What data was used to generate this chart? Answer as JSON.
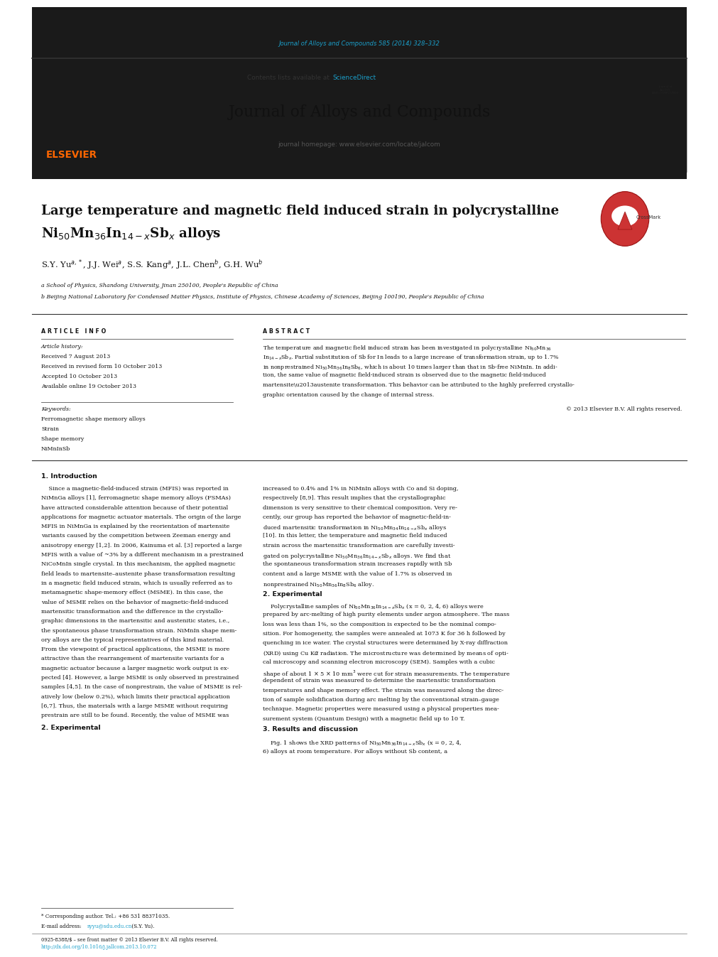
{
  "page_width": 9.92,
  "page_height": 13.23,
  "bg_color": "#ffffff",
  "top_journal_ref": "Journal of Alloys and Compounds 585 (2014) 328–332",
  "top_journal_ref_color": "#1a9fca",
  "header_bg": "#e8e8e8",
  "elsevier_color": "#ff6600",
  "journal_title": "Journal of Alloys and Compounds",
  "journal_homepage": "journal homepage: www.elsevier.com/locate/jalcom",
  "sciencedirect_text": "Contents lists available at ",
  "sciencedirect_link": "ScienceDirect",
  "sciencedirect_color": "#1a9fca",
  "black_bar_color": "#1a1a1a",
  "paper_title_line1": "Large temperature and magnetic field induced strain in polycrystalline",
  "affil_a": "a School of Physics, Shandong University, Jinan 250100, People's Republic of China",
  "affil_b": "b Beijing National Laboratory for Condensed Matter Physics, Institute of Physics, Chinese Academy of Sciences, Beijing 100190, People's Republic of China",
  "article_info_header": "A R T I C L E   I N F O",
  "abstract_header": "A B S T R A C T",
  "article_history_label": "Article history:",
  "received1": "Received 7 August 2013",
  "received2": "Received in revised form 10 October 2013",
  "accepted": "Accepted 10 October 2013",
  "available": "Available online 19 October 2013",
  "keywords_label": "Keywords:",
  "keyword1": "Ferromagnetic shape memory alloys",
  "keyword2": "Strain",
  "keyword3": "Shape memory",
  "keyword4": "NiMnInSb",
  "copyright": "© 2013 Elsevier B.V. All rights reserved.",
  "intro_header": "1. Introduction",
  "section2_header": "2. Experimental",
  "section3_header": "3. Results and discussion",
  "footer_left": "0925-8388/$ – see front matter © 2013 Elsevier B.V. All rights reserved.",
  "footer_doi": "http://dx.doi.org/10.1016/j.jallcom.2013.10.072",
  "footer_doi_color": "#1a9fca",
  "footnote_star": "* Corresponding author. Tel.: +86 531 88371035.",
  "footnote_email_label": "E-mail address: ",
  "footnote_email": "syyu@sdu.edu.cn",
  "footnote_email_color": "#1a9fca",
  "footnote_email_end": " (S.Y. Yu).",
  "link_color": "#1a9fca",
  "text_color": "#000000"
}
